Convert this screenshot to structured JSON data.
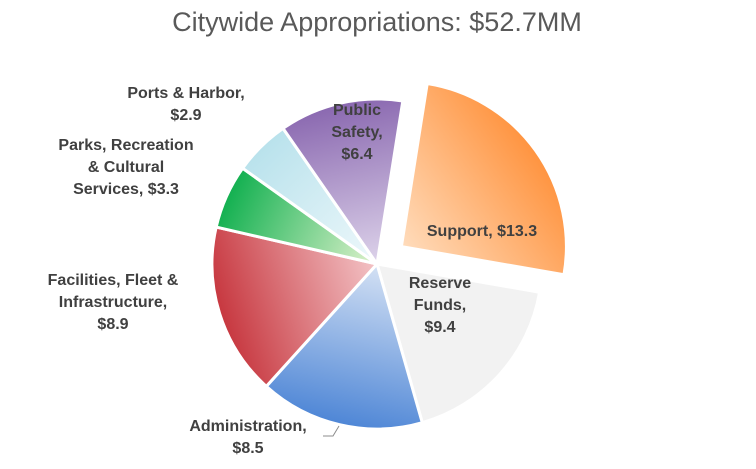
{
  "chart_data": {
    "type": "pie",
    "title": "Citywide Appropriations: $52.7MM",
    "slices": [
      {
        "name": "Support",
        "value": 13.3,
        "label_lines": [
          "Support,  $13.3"
        ],
        "colors": [
          "#ff9440",
          "#ffdcbc"
        ],
        "exploded": true
      },
      {
        "name": "Reserve Funds",
        "value": 9.4,
        "label_lines": [
          "Reserve",
          "Funds,",
          "$9.4"
        ],
        "colors": [
          "#f2f2f2",
          "#f2f2f2"
        ]
      },
      {
        "name": "Administration",
        "value": 8.5,
        "label_lines": [
          "Administration,",
          "$8.5"
        ],
        "colors": [
          "#4e86d6",
          "#d4e1f4"
        ]
      },
      {
        "name": "Facilities, Fleet & Infrastructure",
        "value": 8.9,
        "label_lines": [
          "Facilities, Fleet &",
          "Infrastructure,",
          "$8.9"
        ],
        "colors": [
          "#c7373f",
          "#f3c3c6"
        ]
      },
      {
        "name": "Parks, Recreation & Cultural Services",
        "value": 3.3,
        "label_lines": [
          "Parks, Recreation",
          "& Cultural",
          "Services,  $3.3"
        ],
        "colors": [
          "#12b050",
          "#dff2cc"
        ]
      },
      {
        "name": "Ports & Harbor",
        "value": 2.9,
        "label_lines": [
          "Ports & Harbor,",
          "$2.9"
        ],
        "colors": [
          "#b9e2ec",
          "#eef8fb"
        ]
      },
      {
        "name": "Public Safety",
        "value": 6.4,
        "label_lines": [
          "Public",
          "Safety,",
          "$6.4"
        ],
        "colors": [
          "#8a68b0",
          "#ddd3ea"
        ]
      }
    ]
  }
}
